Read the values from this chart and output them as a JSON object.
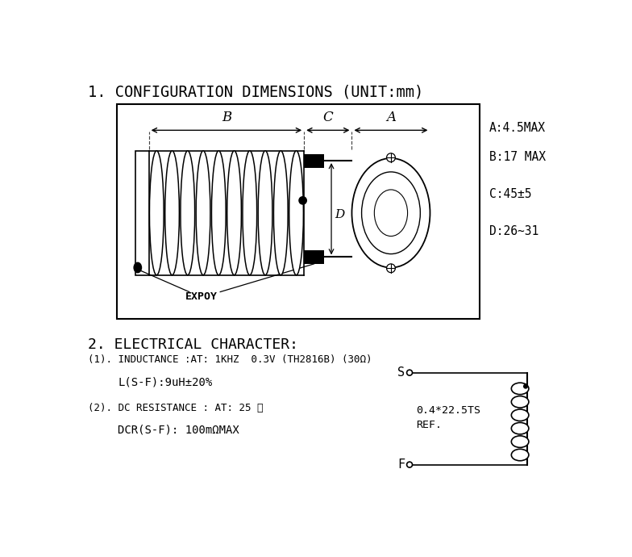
{
  "title1": "1. CONFIGURATION DIMENSIONS (UNIT:mm)",
  "title2": "2. ELECTRICAL CHARACTER:",
  "dim_labels": {
    "A": "A:4.5MAX",
    "B": "B:17 MAX",
    "C": "C:45±5",
    "D": "D:26~31"
  },
  "electrical": {
    "line1": "(1). INDUCTANCE :AT: 1KHZ  0.3V (TH2816B) (30Ω)",
    "line2": "L(S-F):9uH±20%",
    "line3": "(2). DC RESISTANCE : AT: 25 ℃",
    "line4": "DCR(S-F): 100mΩMAX"
  },
  "schematic": {
    "ref_label": "0.4*22.5TS",
    "ref_label2": "REF.",
    "S_label": "S",
    "F_label": "F"
  },
  "bg_color": "#ffffff",
  "text_color": "#000000"
}
